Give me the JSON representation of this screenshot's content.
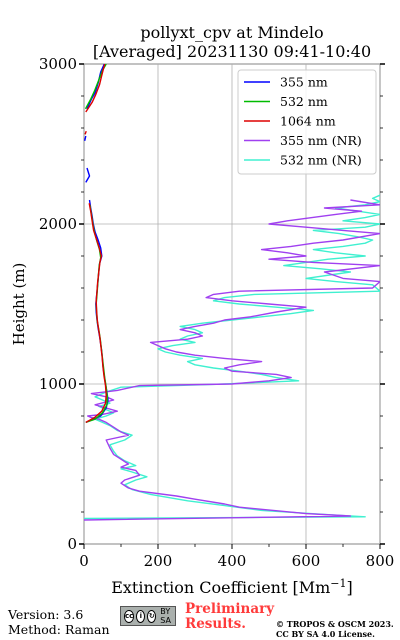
{
  "chart_data": {
    "type": "line",
    "title_line1": "pollyxt_cpv at Mindelo",
    "title_line2": "[Averaged] 20231130 09:41-10:40",
    "xlabel": "Extinction Coefficient [Mm",
    "xlabel_sup": "−1",
    "xlabel_end": "]",
    "ylabel": "Height (m)",
    "xlim": [
      0,
      800
    ],
    "ylim": [
      0,
      3000
    ],
    "xticks": [
      "0",
      "200",
      "400",
      "600",
      "800"
    ],
    "yticks": [
      "0",
      "1000",
      "2000",
      "3000"
    ],
    "grid": true,
    "legend_position": "top-right",
    "series": [
      {
        "name": "355 nm",
        "color": "#0000ff",
        "points": [
          [
            5,
            760
          ],
          [
            25,
            780
          ],
          [
            45,
            800
          ],
          [
            60,
            850
          ],
          [
            65,
            900
          ],
          [
            62,
            950
          ],
          [
            58,
            1000
          ],
          [
            55,
            1050
          ],
          [
            52,
            1100
          ],
          [
            50,
            1150
          ],
          [
            48,
            1200
          ],
          [
            45,
            1250
          ],
          [
            42,
            1300
          ],
          [
            38,
            1350
          ],
          [
            35,
            1400
          ],
          [
            33,
            1450
          ],
          [
            32,
            1500
          ],
          [
            34,
            1550
          ],
          [
            36,
            1600
          ],
          [
            38,
            1650
          ],
          [
            40,
            1700
          ],
          [
            42,
            1750
          ],
          [
            48,
            1800
          ],
          [
            45,
            1850
          ],
          [
            38,
            1900
          ],
          [
            30,
            1950
          ],
          [
            25,
            2000
          ],
          [
            22,
            2050
          ],
          [
            18,
            2100
          ],
          [
            15,
            2150
          ],
          [
            null,
            null
          ],
          [
            5,
            2260
          ],
          [
            15,
            2300
          ],
          [
            8,
            2350
          ],
          [
            null,
            null
          ],
          [
            2,
            2520
          ],
          [
            5,
            2550
          ],
          [
            null,
            null
          ],
          [
            8,
            2720
          ],
          [
            20,
            2780
          ],
          [
            30,
            2820
          ],
          [
            38,
            2880
          ],
          [
            45,
            2950
          ],
          [
            55,
            3000
          ]
        ]
      },
      {
        "name": "532 nm",
        "color": "#00bb00",
        "points": [
          [
            5,
            760
          ],
          [
            30,
            780
          ],
          [
            50,
            820
          ],
          [
            62,
            870
          ],
          [
            63,
            920
          ],
          [
            60,
            980
          ],
          [
            56,
            1040
          ],
          [
            53,
            1100
          ],
          [
            50,
            1160
          ],
          [
            47,
            1220
          ],
          [
            44,
            1280
          ],
          [
            40,
            1340
          ],
          [
            36,
            1390
          ],
          [
            34,
            1450
          ],
          [
            33,
            1500
          ],
          [
            35,
            1560
          ],
          [
            37,
            1620
          ],
          [
            39,
            1680
          ],
          [
            41,
            1740
          ],
          [
            45,
            1790
          ],
          [
            42,
            1840
          ],
          [
            35,
            1890
          ],
          [
            28,
            1950
          ],
          [
            24,
            2000
          ],
          [
            20,
            2060
          ],
          [
            16,
            2120
          ],
          [
            null,
            null
          ],
          [
            4,
            2720
          ],
          [
            18,
            2780
          ],
          [
            28,
            2830
          ],
          [
            40,
            2900
          ],
          [
            50,
            2960
          ],
          [
            60,
            3000
          ]
        ]
      },
      {
        "name": "1064 nm",
        "color": "#dd0000",
        "points": [
          [
            5,
            760
          ],
          [
            28,
            790
          ],
          [
            48,
            830
          ],
          [
            58,
            880
          ],
          [
            60,
            930
          ],
          [
            58,
            990
          ],
          [
            54,
            1050
          ],
          [
            51,
            1110
          ],
          [
            49,
            1170
          ],
          [
            46,
            1230
          ],
          [
            43,
            1290
          ],
          [
            39,
            1350
          ],
          [
            36,
            1400
          ],
          [
            34,
            1460
          ],
          [
            33,
            1520
          ],
          [
            35,
            1580
          ],
          [
            37,
            1640
          ],
          [
            40,
            1700
          ],
          [
            43,
            1760
          ],
          [
            47,
            1800
          ],
          [
            40,
            1860
          ],
          [
            33,
            1910
          ],
          [
            26,
            1960
          ],
          [
            22,
            2020
          ],
          [
            18,
            2080
          ],
          [
            14,
            2130
          ],
          [
            null,
            null
          ],
          [
            3,
            2560
          ],
          [
            6,
            2580
          ],
          [
            null,
            null
          ],
          [
            5,
            2700
          ],
          [
            22,
            2760
          ],
          [
            32,
            2810
          ],
          [
            42,
            2870
          ],
          [
            48,
            2930
          ],
          [
            56,
            3000
          ]
        ]
      },
      {
        "name": "355 nm (NR)",
        "color": "#a040f0",
        "points": [
          [
            0,
            150
          ],
          [
            720,
            175
          ],
          [
            600,
            190
          ],
          [
            420,
            230
          ],
          [
            380,
            250
          ],
          [
            300,
            280
          ],
          [
            250,
            300
          ],
          [
            150,
            330
          ],
          [
            120,
            350
          ],
          [
            100,
            380
          ],
          [
            110,
            400
          ],
          [
            150,
            430
          ],
          [
            140,
            460
          ],
          [
            100,
            480
          ],
          [
            120,
            500
          ],
          [
            100,
            530
          ],
          [
            80,
            560
          ],
          [
            70,
            600
          ],
          [
            60,
            650
          ],
          [
            120,
            680
          ],
          [
            100,
            700
          ],
          [
            80,
            730
          ],
          [
            60,
            760
          ],
          [
            40,
            780
          ],
          [
            20,
            790
          ],
          [
            10,
            800
          ],
          [
            50,
            810
          ],
          [
            90,
            830
          ],
          [
            60,
            850
          ],
          [
            30,
            870
          ],
          [
            80,
            900
          ],
          [
            60,
            920
          ],
          [
            20,
            940
          ],
          [
            90,
            960
          ],
          [
            150,
            990
          ],
          [
            400,
            1000
          ],
          [
            500,
            1020
          ],
          [
            560,
            1040
          ],
          [
            520,
            1060
          ],
          [
            400,
            1080
          ],
          [
            380,
            1100
          ],
          [
            420,
            1120
          ],
          [
            480,
            1140
          ],
          [
            380,
            1160
          ],
          [
            300,
            1180
          ],
          [
            250,
            1200
          ],
          [
            220,
            1220
          ],
          [
            200,
            1240
          ],
          [
            180,
            1260
          ],
          [
            280,
            1280
          ],
          [
            320,
            1300
          ],
          [
            300,
            1320
          ],
          [
            260,
            1340
          ],
          [
            300,
            1360
          ],
          [
            350,
            1380
          ],
          [
            380,
            1400
          ],
          [
            450,
            1420
          ],
          [
            520,
            1450
          ],
          [
            600,
            1480
          ],
          [
            500,
            1500
          ],
          [
            400,
            1520
          ],
          [
            330,
            1540
          ],
          [
            350,
            1560
          ],
          [
            420,
            1580
          ],
          [
            780,
            1600
          ],
          [
            800,
            1640
          ],
          [
            700,
            1660
          ],
          [
            650,
            1700
          ],
          [
            800,
            1740
          ],
          [
            620,
            1760
          ],
          [
            500,
            1780
          ],
          [
            600,
            1800
          ],
          [
            550,
            1820
          ],
          [
            480,
            1840
          ],
          [
            560,
            1860
          ],
          [
            620,
            1880
          ],
          [
            700,
            1900
          ],
          [
            800,
            1940
          ],
          [
            700,
            1960
          ],
          [
            600,
            1980
          ],
          [
            500,
            2000
          ],
          [
            550,
            2020
          ],
          [
            680,
            2060
          ],
          [
            750,
            2080
          ],
          [
            650,
            2100
          ],
          [
            800,
            2120
          ],
          [
            720,
            2150
          ],
          [
            null,
            null
          ],
          [
            5,
            2600
          ],
          [
            null,
            null
          ],
          [
            0,
            2700
          ]
        ]
      },
      {
        "name": "532 nm (NR)",
        "color": "#40f0d0",
        "points": [
          [
            0,
            160
          ],
          [
            760,
            170
          ],
          [
            650,
            185
          ],
          [
            480,
            210
          ],
          [
            380,
            240
          ],
          [
            280,
            270
          ],
          [
            180,
            310
          ],
          [
            130,
            340
          ],
          [
            110,
            370
          ],
          [
            140,
            400
          ],
          [
            170,
            420
          ],
          [
            130,
            450
          ],
          [
            100,
            470
          ],
          [
            140,
            490
          ],
          [
            110,
            520
          ],
          [
            90,
            550
          ],
          [
            80,
            580
          ],
          [
            70,
            620
          ],
          [
            110,
            650
          ],
          [
            130,
            680
          ],
          [
            90,
            710
          ],
          [
            70,
            740
          ],
          [
            50,
            760
          ],
          [
            30,
            780
          ],
          [
            60,
            800
          ],
          [
            80,
            820
          ],
          [
            60,
            840
          ],
          [
            40,
            860
          ],
          [
            70,
            880
          ],
          [
            50,
            900
          ],
          [
            30,
            920
          ],
          [
            60,
            950
          ],
          [
            100,
            980
          ],
          [
            380,
            1000
          ],
          [
            580,
            1020
          ],
          [
            520,
            1040
          ],
          [
            480,
            1060
          ],
          [
            420,
            1080
          ],
          [
            350,
            1100
          ],
          [
            300,
            1120
          ],
          [
            280,
            1140
          ],
          [
            320,
            1160
          ],
          [
            260,
            1180
          ],
          [
            220,
            1200
          ],
          [
            200,
            1220
          ],
          [
            240,
            1240
          ],
          [
            300,
            1260
          ],
          [
            260,
            1280
          ],
          [
            280,
            1300
          ],
          [
            320,
            1320
          ],
          [
            300,
            1340
          ],
          [
            260,
            1360
          ],
          [
            320,
            1380
          ],
          [
            400,
            1400
          ],
          [
            480,
            1420
          ],
          [
            560,
            1440
          ],
          [
            620,
            1460
          ],
          [
            520,
            1480
          ],
          [
            420,
            1500
          ],
          [
            350,
            1520
          ],
          [
            380,
            1540
          ],
          [
            460,
            1560
          ],
          [
            800,
            1580
          ],
          [
            780,
            1620
          ],
          [
            680,
            1640
          ],
          [
            600,
            1660
          ],
          [
            720,
            1700
          ],
          [
            640,
            1720
          ],
          [
            540,
            1740
          ],
          [
            600,
            1760
          ],
          [
            660,
            1780
          ],
          [
            760,
            1800
          ],
          [
            680,
            1820
          ],
          [
            620,
            1840
          ],
          [
            700,
            1860
          ],
          [
            760,
            1880
          ],
          [
            780,
            1900
          ],
          [
            740,
            1920
          ],
          [
            690,
            1940
          ],
          [
            620,
            1960
          ],
          [
            760,
            1980
          ],
          [
            800,
            2000
          ],
          [
            700,
            2020
          ],
          [
            760,
            2040
          ],
          [
            800,
            2060
          ],
          [
            740,
            2080
          ],
          [
            680,
            2100
          ],
          [
            760,
            2120
          ],
          [
            800,
            2140
          ],
          [
            780,
            2160
          ],
          [
            800,
            2180
          ]
        ]
      }
    ]
  },
  "footer": {
    "version": "Version: 3.6",
    "method": "Method: Raman",
    "license_badge": "BY SA",
    "preliminary_line1": "Preliminary",
    "preliminary_line2": "Results.",
    "copyright_line1": "© TROPOS & OSCM 2023.",
    "copyright_line2": "CC BY SA 4.0 License."
  }
}
